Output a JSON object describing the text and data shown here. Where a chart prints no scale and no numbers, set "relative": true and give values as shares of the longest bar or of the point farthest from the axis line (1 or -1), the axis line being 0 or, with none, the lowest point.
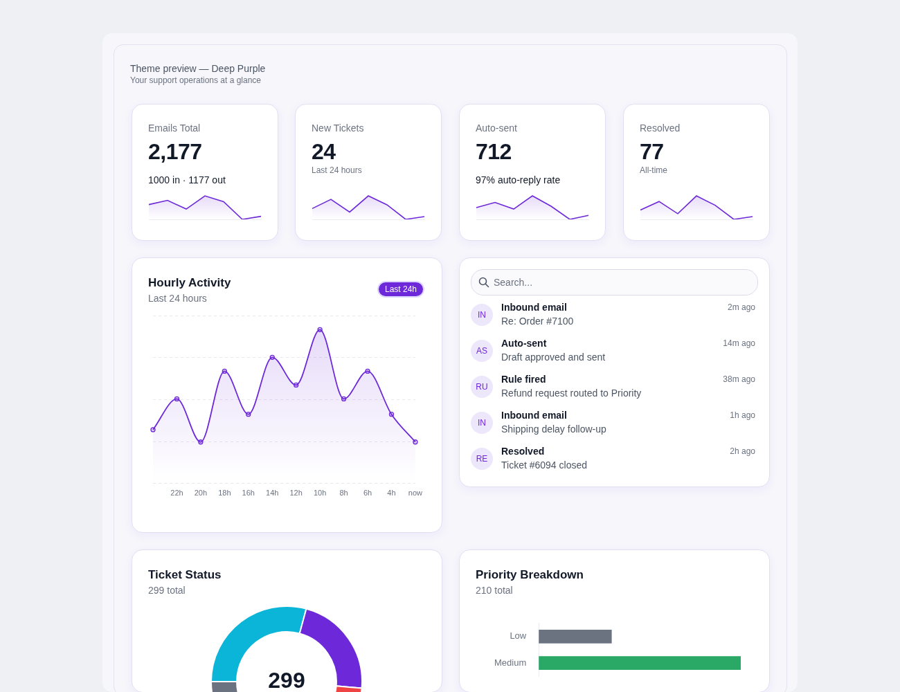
{
  "chart_data": [
    {
      "type": "other",
      "title": "Theme preview — Deep Purple",
      "subtitle": "Your support operations at a glance"
    },
    {
      "type": "area",
      "title": "Emails Total",
      "annotations": [
        "2,177",
        "1000 in · 1177 out"
      ],
      "categories": [
        null,
        null,
        null,
        null,
        null,
        null,
        null
      ],
      "values": [
        0.63,
        0.81,
        0.44,
        1,
        0.75,
        0,
        0.13
      ],
      "color": "#6d28d9",
      "relative": true
    },
    {
      "type": "area",
      "title": "New Tickets",
      "annotations": [
        "24",
        "Last 24 hours"
      ],
      "categories": [
        null,
        null,
        null,
        null,
        null,
        null,
        null
      ],
      "values": [
        0.46,
        0.85,
        0.31,
        1,
        0.62,
        0,
        0.12
      ],
      "color": "#6d28d9",
      "relative": true
    },
    {
      "type": "area",
      "title": "Auto-sent",
      "annotations": [
        "712",
        "97% auto-reply rate"
      ],
      "categories": [
        null,
        null,
        null,
        null,
        null,
        null,
        null
      ],
      "values": [
        0.5,
        0.72,
        0.44,
        1,
        0.56,
        0,
        0.17
      ],
      "color": "#6d28d9",
      "relative": true
    },
    {
      "type": "area",
      "title": "Resolved",
      "annotations": [
        "77",
        "All-time"
      ],
      "categories": [
        null,
        null,
        null,
        null,
        null,
        null,
        null
      ],
      "values": [
        0.4,
        0.76,
        0.24,
        1,
        0.6,
        0,
        0.12
      ],
      "color": "#6d28d9",
      "relative": true
    },
    {
      "type": "area",
      "title": "Hourly Activity",
      "subtitle": "Last 24 hours",
      "annotations": [
        "Last 24h"
      ],
      "categories": [
        null,
        "22h",
        "20h",
        "18h",
        "16h",
        "14h",
        "12h",
        "10h",
        "8h",
        "6h",
        "4h",
        "now"
      ],
      "values": [
        0.35,
        0.55,
        0.27,
        0.73,
        0.45,
        0.82,
        0.64,
        1,
        0.55,
        0.73,
        0.45,
        0.27
      ],
      "color": "#6d28d9",
      "relative": true,
      "marker": "circle",
      "grid": "y"
    },
    {
      "type": "other",
      "annotations": [
        "Search...",
        "IN",
        "Inbound email",
        "Re: Order #7100",
        "2m ago",
        "AS",
        "Auto-sent",
        "Draft approved and sent",
        "14m ago",
        "RU",
        "Rule fired",
        "Refund request routed to Priority",
        "38m ago",
        "IN",
        "Inbound email",
        "Shipping delay follow-up",
        "1h ago",
        "RE",
        "Resolved",
        "Ticket #6094 closed",
        "2h ago"
      ]
    },
    {
      "type": "donut",
      "title": "Ticket Status",
      "subtitle": "299 total",
      "annotations": [
        "299"
      ],
      "categories": [
        null,
        null,
        null,
        null
      ],
      "values": [
        29.2,
        22.2,
        27.8,
        20.8
      ],
      "colors": [
        "#0ab5d8",
        "#6d28d9",
        "#ef4444",
        "#6b7280"
      ]
    },
    {
      "type": "bar",
      "title": "Priority Breakdown",
      "subtitle": "210 total",
      "orientation": "horizontal",
      "categories": [
        "Low",
        "Medium"
      ],
      "values": [
        0.36,
        1
      ],
      "colors": [
        "#6b7280",
        "#2aa866"
      ],
      "relative": true
    }
  ]
}
